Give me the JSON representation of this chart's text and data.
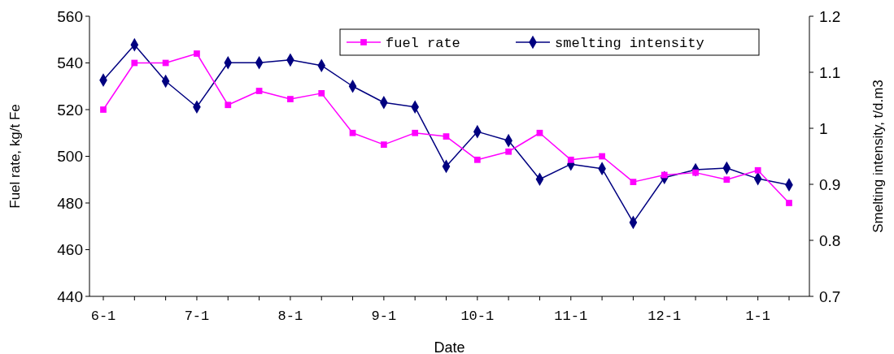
{
  "chart_data": {
    "type": "line",
    "xlabel": "Date",
    "ylabel": "Fuel rate, kg/t Fe",
    "y2label": "Smelting intensity, t/d.m3",
    "categories": [
      "6-1",
      null,
      null,
      "7-1",
      null,
      null,
      "8-1",
      null,
      null,
      "9-1",
      null,
      null,
      "10-1",
      null,
      null,
      "11-1",
      null,
      null,
      "12-1",
      null,
      null,
      "1-1",
      null
    ],
    "series": [
      {
        "name": "fuel rate",
        "color": "#ff00ff",
        "marker": "square",
        "values": [
          520,
          540,
          540,
          544,
          522,
          528,
          524.5,
          527,
          510,
          505,
          510,
          508.5,
          498.5,
          502,
          510,
          498.5,
          500,
          489,
          492,
          493,
          490,
          494,
          480
        ]
      },
      {
        "name": "smelting intensity",
        "color": "#000080",
        "marker": "diamond",
        "axis": "y2",
        "values": [
          1.086,
          1.149,
          1.084,
          1.038,
          1.117,
          1.117,
          1.122,
          1.112,
          1.075,
          1.046,
          1.038,
          0.932,
          0.994,
          0.978,
          0.909,
          0.936,
          0.928,
          0.832,
          0.912,
          0.926,
          0.929,
          0.91,
          0.899
        ]
      }
    ],
    "ylim": [
      440,
      560
    ],
    "yticks": [
      440,
      460,
      480,
      500,
      520,
      540,
      560
    ],
    "y2lim": [
      0.7,
      1.2
    ],
    "y2ticks": [
      {
        "value": 0.7,
        "label": "0.7"
      },
      {
        "value": 0.8,
        "label": "0.8"
      },
      {
        "value": 0.9,
        "label": "0.9"
      },
      {
        "value": 1,
        "label": "1"
      },
      {
        "value": 1.1,
        "label": "1.1"
      },
      {
        "value": 1.2,
        "label": "1.2"
      }
    ],
    "legend": "top right",
    "grid": false
  }
}
